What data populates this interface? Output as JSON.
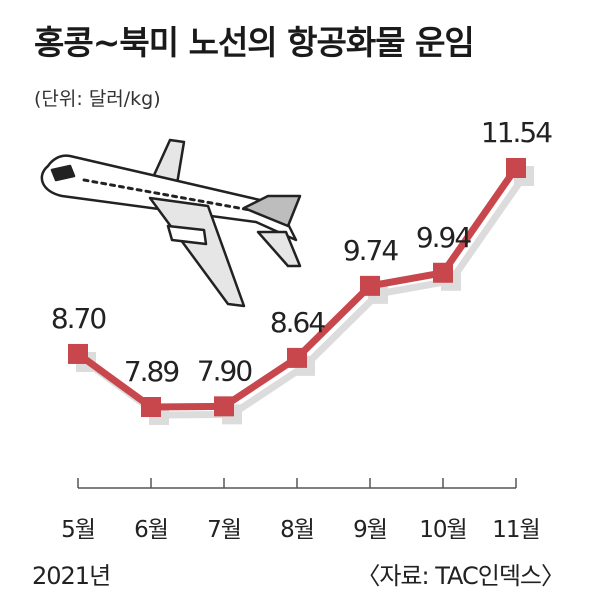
{
  "title": "홍콩~북미 노선의 항공화물 운임",
  "unit_note": "(단위: 달러/kg)",
  "year_label": "2021년",
  "source": "〈자료: TAC인덱스〉",
  "icon": "airplane-icon",
  "colors": {
    "line": "#c8474d",
    "marker": "#c8474d",
    "shadow": "#dcdcdc",
    "axis": "#555555"
  },
  "chart_data": {
    "type": "line",
    "title": "홍콩~북미 노선의 항공화물 운임",
    "ylabel": "(단위: 달러/kg)",
    "xlabel": "",
    "categories": [
      "5월",
      "6월",
      "7월",
      "8월",
      "9월",
      "10월",
      "11월"
    ],
    "values": [
      8.7,
      7.89,
      7.9,
      8.64,
      9.74,
      9.94,
      11.54
    ],
    "value_labels": [
      "8.70",
      "7.89",
      "7.90",
      "8.64",
      "9.74",
      "9.94",
      "11.54"
    ],
    "ylim": [
      7.0,
      12.0
    ],
    "grid": false,
    "legend": "none"
  }
}
